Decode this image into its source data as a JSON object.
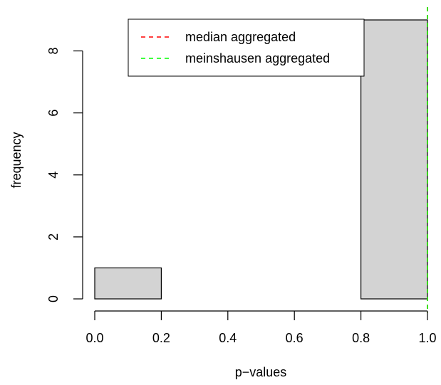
{
  "chart_data": {
    "type": "histogram",
    "title": "",
    "xlabel": "p−values",
    "ylabel": "frequency",
    "bins": [
      {
        "from": 0.0,
        "to": 0.2,
        "count": 1
      },
      {
        "from": 0.2,
        "to": 0.4,
        "count": 0
      },
      {
        "from": 0.4,
        "to": 0.6,
        "count": 0
      },
      {
        "from": 0.6,
        "to": 0.8,
        "count": 0
      },
      {
        "from": 0.8,
        "to": 1.0,
        "count": 9
      }
    ],
    "xlim": [
      0.0,
      1.0
    ],
    "ylim": [
      0,
      9
    ],
    "x_ticks": [
      {
        "value": 0.0,
        "label": "0.0"
      },
      {
        "value": 0.2,
        "label": "0.2"
      },
      {
        "value": 0.4,
        "label": "0.4"
      },
      {
        "value": 0.6,
        "label": "0.6"
      },
      {
        "value": 0.8,
        "label": "0.8"
      },
      {
        "value": 1.0,
        "label": "1.0"
      }
    ],
    "y_ticks": [
      {
        "value": 0,
        "label": "0"
      },
      {
        "value": 2,
        "label": "2"
      },
      {
        "value": 4,
        "label": "4"
      },
      {
        "value": 6,
        "label": "6"
      },
      {
        "value": 8,
        "label": "8"
      }
    ],
    "bar_color": "#d3d3d3",
    "reference_lines": [
      {
        "name": "median aggregated",
        "x": 1.0,
        "color": "#ff0000",
        "style": "dashed"
      },
      {
        "name": "meinshausen aggregated",
        "x": 1.0,
        "color": "#00ff00",
        "style": "dashed"
      }
    ],
    "legend_position": "top-right",
    "grid": false
  }
}
